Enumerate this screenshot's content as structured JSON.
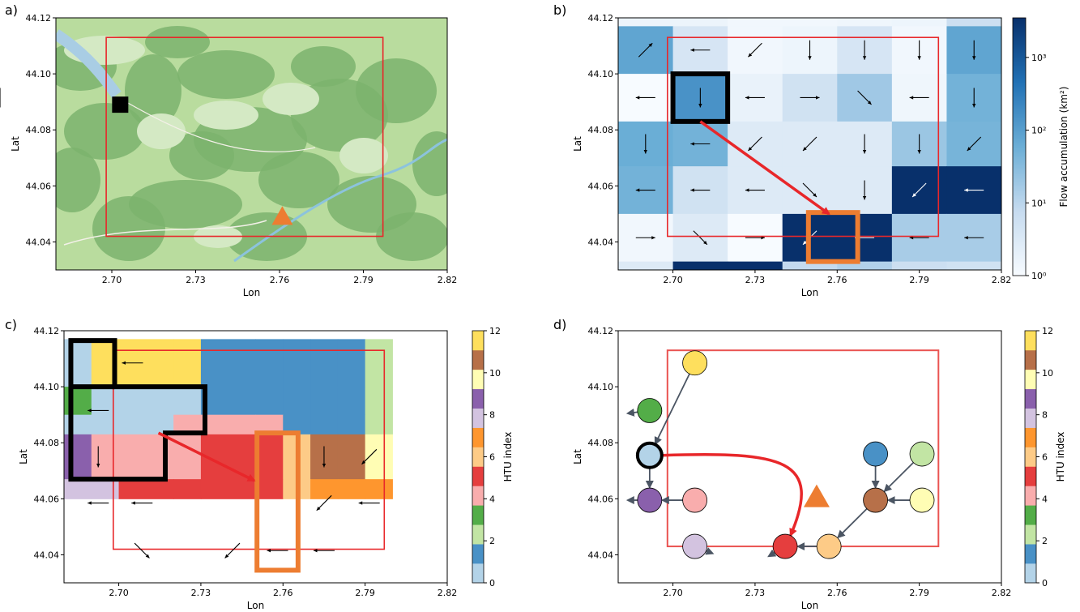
{
  "panel_labels": [
    "a)",
    "b)",
    "c)",
    "d)"
  ],
  "chart_data": [
    {
      "panel": "a)",
      "type": "map",
      "xlabel": "Lon",
      "ylabel": "Lat",
      "xticks": [
        "2.70",
        "2.73",
        "2.76",
        "2.79",
        "2.82"
      ],
      "yticks": [
        "44.12",
        "44.10",
        "44.08",
        "44.06",
        "44.04"
      ],
      "xlim": [
        2.68,
        2.82
      ],
      "ylim": [
        44.03,
        44.12
      ],
      "rectangle": {
        "lon": [
          2.698,
          2.797
        ],
        "lat": [
          44.042,
          44.113
        ],
        "color": "#e8272a"
      },
      "square_marker": {
        "lon": 2.703,
        "lat": 44.089,
        "color": "#000000"
      },
      "triangle_marker": {
        "lon": 2.761,
        "lat": 44.049,
        "color": "#ed7d31"
      }
    },
    {
      "panel": "b)",
      "type": "heatmap",
      "xlabel": "Lon",
      "ylabel": "Lat",
      "colorbar_label": "Flow accumulation (km²)",
      "colorbar_ticks": [
        "10³",
        "10²",
        "10¹",
        "10⁰"
      ],
      "colorbar_scale": "log",
      "xticks": [
        "2.70",
        "2.73",
        "2.76",
        "2.79",
        "2.82"
      ],
      "yticks": [
        "44.12",
        "44.10",
        "44.08",
        "44.06",
        "44.04"
      ],
      "xlim": [
        2.68,
        2.82
      ],
      "ylim": [
        44.03,
        44.12
      ],
      "grid_lon": [
        2.68,
        2.7,
        2.72,
        2.74,
        2.76,
        2.78,
        2.8,
        2.82
      ],
      "grid_lat": [
        44.12,
        44.117,
        44.1,
        44.083,
        44.067,
        44.05,
        44.033,
        44.03
      ],
      "cell_values": [
        [
          1.6,
          1.6,
          1.3,
          1.3,
          1.4,
          1.5,
          6.0,
          1.4
        ],
        [
          80,
          4,
          1.3,
          1.5,
          4,
          1.3,
          80,
          1.8
        ],
        [
          1,
          150,
          1.8,
          5,
          18,
          1.4,
          50,
          1.2
        ],
        [
          60,
          50,
          3,
          3,
          3,
          20,
          45,
          3500
        ],
        [
          50,
          5,
          3,
          3,
          3,
          3500,
          3500,
          3500
        ],
        [
          1.3,
          3,
          1,
          3500,
          3500,
          15,
          15,
          8
        ],
        [
          3,
          3500,
          3500,
          8,
          12,
          6,
          5,
          3
        ]
      ],
      "arrows_deg": [
        [
          null,
          null,
          null,
          null,
          null,
          null,
          null,
          null
        ],
        [
          45,
          180,
          225,
          270,
          270,
          270,
          270,
          180
        ],
        [
          180,
          270,
          180,
          0,
          315,
          180,
          270,
          270
        ],
        [
          270,
          180,
          225,
          225,
          270,
          270,
          225,
          270
        ],
        [
          180,
          180,
          180,
          315,
          270,
          225,
          180,
          180
        ],
        [
          0,
          315,
          0,
          225,
          180,
          180,
          180,
          180
        ],
        [
          null,
          null,
          null,
          null,
          null,
          null,
          null,
          null
        ]
      ],
      "rectangle": {
        "lon": [
          2.698,
          2.797
        ],
        "lat": [
          44.042,
          44.113
        ],
        "color": "#e8272a"
      },
      "source_box": {
        "lon": [
          2.7,
          2.72
        ],
        "lat": [
          44.083,
          44.1
        ],
        "color": "#000000"
      },
      "outlet_box": {
        "lon": [
          2.7495,
          2.7675
        ],
        "lat": [
          44.033,
          44.0505
        ],
        "color": "#ed7d31"
      },
      "flow_arrow": {
        "from": [
          2.71,
          44.083
        ],
        "to": [
          2.757,
          44.05
        ],
        "color": "#e8272a"
      }
    },
    {
      "panel": "c)",
      "type": "heatmap",
      "xlabel": "Lon",
      "ylabel": "Lat",
      "colorbar_label": "HTU index",
      "colorbar_ticks": [
        "0",
        "2",
        "4",
        "6",
        "8",
        "10",
        "12"
      ],
      "xticks": [
        "2.70",
        "2.73",
        "2.76",
        "2.79",
        "2.82"
      ],
      "yticks": [
        "44.12",
        "44.10",
        "44.08",
        "44.06",
        "44.04"
      ],
      "xlim": [
        2.68,
        2.82
      ],
      "ylim": [
        44.03,
        44.12
      ],
      "palette": [
        "#b3d3e8",
        "#4991c6",
        "#c2e5a4",
        "#53ad48",
        "#f9adad",
        "#e53e3e",
        "#fdcb87",
        "#fe962e",
        "#d3c3e0",
        "#8a60ac",
        "#fffdb4",
        "#b77049",
        "#fedf5d"
      ],
      "grid_lon": [
        2.68,
        2.69,
        2.7,
        2.72,
        2.73,
        2.75,
        2.76,
        2.77,
        2.78,
        2.79,
        2.8
      ],
      "grid_lat": [
        44.117,
        44.1,
        44.09,
        44.083,
        44.067,
        44.06,
        44.05,
        44.033
      ],
      "region_cells": [
        [
          0,
          12,
          12,
          12,
          1,
          1,
          1,
          1,
          1,
          2
        ],
        [
          3,
          0,
          0,
          0,
          1,
          1,
          1,
          1,
          1,
          2
        ],
        [
          0,
          0,
          0,
          4,
          4,
          4,
          1,
          1,
          1,
          2
        ],
        [
          9,
          4,
          4,
          4,
          5,
          5,
          6,
          11,
          11,
          10
        ],
        [
          8,
          8,
          5,
          5,
          5,
          5,
          6,
          7,
          7,
          7
        ]
      ],
      "arrows": [
        {
          "lon": 2.705,
          "lat": 44.1085,
          "deg": 180
        },
        {
          "lon": 2.6925,
          "lat": 44.0915,
          "deg": 180
        },
        {
          "lon": 2.6925,
          "lat": 44.075,
          "deg": 270
        },
        {
          "lon": 2.6925,
          "lat": 44.0585,
          "deg": 180
        },
        {
          "lon": 2.7085,
          "lat": 44.0585,
          "deg": 180
        },
        {
          "lon": 2.7085,
          "lat": 44.0415,
          "deg": 315
        },
        {
          "lon": 2.7415,
          "lat": 44.0415,
          "deg": 225
        },
        {
          "lon": 2.758,
          "lat": 44.0415,
          "deg": 180
        },
        {
          "lon": 2.775,
          "lat": 44.0415,
          "deg": 180
        },
        {
          "lon": 2.775,
          "lat": 44.075,
          "deg": 270
        },
        {
          "lon": 2.775,
          "lat": 44.0585,
          "deg": 225
        },
        {
          "lon": 2.7915,
          "lat": 44.075,
          "deg": 225
        },
        {
          "lon": 2.7915,
          "lat": 44.0585,
          "deg": 180
        }
      ],
      "rectangle": {
        "lon": [
          2.698,
          2.797
        ],
        "lat": [
          44.042,
          44.113
        ],
        "color": "#e8272a"
      },
      "source_outline": [
        [
          2.6825,
          44.1165
        ],
        [
          2.6985,
          44.1165
        ],
        [
          2.6985,
          44.1
        ],
        [
          2.7315,
          44.1
        ],
        [
          2.7315,
          44.0835
        ],
        [
          2.717,
          44.0835
        ],
        [
          2.717,
          44.067
        ],
        [
          2.6825,
          44.067
        ]
      ],
      "source_divider": [
        [
          2.6825,
          44.1
        ],
        [
          2.6985,
          44.1
        ]
      ],
      "outlet_box": {
        "lon": [
          2.7505,
          2.7655
        ],
        "lat": [
          44.0345,
          44.0835
        ],
        "color": "#ed7d31"
      },
      "flow_arrow": {
        "from": [
          2.7145,
          44.0835
        ],
        "to": [
          2.7495,
          44.0665
        ],
        "color": "#e8272a"
      }
    },
    {
      "panel": "d)",
      "type": "scatter",
      "xlabel": "Lon",
      "ylabel": "Lat",
      "colorbar_label": "HTU index",
      "colorbar_ticks": [
        "0",
        "2",
        "4",
        "6",
        "8",
        "10",
        "12"
      ],
      "xticks": [
        "2.70",
        "2.73",
        "2.76",
        "2.79",
        "2.82"
      ],
      "yticks": [
        "44.12",
        "44.10",
        "44.08",
        "44.06",
        "44.04"
      ],
      "xlim": [
        2.68,
        2.82
      ],
      "ylim": [
        44.03,
        44.12
      ],
      "rectangle": {
        "lon": [
          2.698,
          2.797
        ],
        "lat": [
          44.043,
          44.113
        ],
        "color": "#ea5351"
      },
      "nodes": [
        {
          "lon": 2.708,
          "lat": 44.1085,
          "htu": 12
        },
        {
          "lon": 2.6915,
          "lat": 44.0915,
          "htu": 3
        },
        {
          "lon": 2.6915,
          "lat": 44.0755,
          "htu": 0
        },
        {
          "lon": 2.6915,
          "lat": 44.0595,
          "htu": 9
        },
        {
          "lon": 2.708,
          "lat": 44.0595,
          "htu": 4
        },
        {
          "lon": 2.708,
          "lat": 44.043,
          "htu": 8
        },
        {
          "lon": 2.741,
          "lat": 44.043,
          "htu": 5
        },
        {
          "lon": 2.757,
          "lat": 44.043,
          "htu": 6
        },
        {
          "lon": 2.774,
          "lat": 44.076,
          "htu": 1
        },
        {
          "lon": 2.791,
          "lat": 44.076,
          "htu": 2
        },
        {
          "lon": 2.774,
          "lat": 44.0595,
          "htu": 11
        },
        {
          "lon": 2.791,
          "lat": 44.0595,
          "htu": 10
        }
      ],
      "edges": [
        [
          0,
          2
        ],
        [
          1,
          "out",
          2.6835,
          44.0905
        ],
        [
          2,
          3
        ],
        [
          4,
          3
        ],
        [
          3,
          "out",
          2.6835,
          44.0595
        ],
        [
          5,
          "out",
          2.7145,
          44.0405
        ],
        [
          6,
          "out",
          2.735,
          44.0395
        ],
        [
          7,
          6
        ],
        [
          8,
          10
        ],
        [
          9,
          10
        ],
        [
          11,
          10
        ],
        [
          10,
          7
        ]
      ],
      "triangle_marker": {
        "lon": 2.7525,
        "lat": 44.0605,
        "color": "#ed7d31"
      },
      "flow_arrow": {
        "from": [
          2.696,
          44.0755
        ],
        "to": [
          2.743,
          44.047
        ],
        "color": "#e8272a"
      }
    }
  ]
}
